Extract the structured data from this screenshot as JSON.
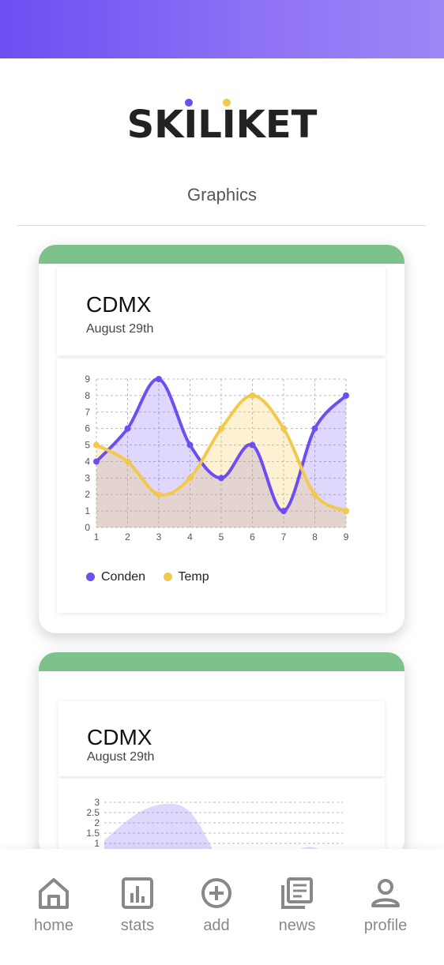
{
  "app": {
    "logo_text": "SKILIKET",
    "section_title": "Graphics"
  },
  "colors": {
    "header_gradient_start": "#6d4ef2",
    "header_gradient_end": "#9d86f6",
    "card_band": "#7cc28a",
    "series_conden": "#6d4ef2",
    "series_temp": "#f2c94c"
  },
  "cards": [
    {
      "city": "CDMX",
      "date": "August 29th",
      "chart_data": {
        "type": "line",
        "x": [
          1,
          2,
          3,
          4,
          5,
          6,
          7,
          8,
          9
        ],
        "series": [
          {
            "name": "Conden",
            "values": [
              4,
              6,
              9,
              5,
              3,
              5,
              1,
              6,
              8
            ]
          },
          {
            "name": "Temp",
            "values": [
              5,
              4,
              2,
              3,
              6,
              8,
              6,
              2,
              1
            ]
          }
        ],
        "xlim": [
          1,
          9
        ],
        "ylim": [
          0,
          9
        ],
        "y_ticks": [
          0,
          1,
          2,
          3,
          4,
          5,
          6,
          7,
          8,
          9
        ],
        "x_ticks": [
          1,
          2,
          3,
          4,
          5,
          6,
          7,
          8,
          9
        ],
        "grid": true,
        "legend": "bottom-left"
      },
      "legend": [
        "Conden",
        "Temp"
      ]
    },
    {
      "city": "CDMX",
      "date": "August 29th",
      "chart_data": {
        "type": "area",
        "y_ticks": [
          1,
          1.5,
          2,
          2.5,
          3
        ],
        "y_tick_labels": [
          "1",
          "1.5",
          "2",
          "2.5",
          "3"
        ],
        "grid": true
      }
    }
  ],
  "nav": {
    "items": [
      {
        "label": "home",
        "icon": "home-icon"
      },
      {
        "label": "stats",
        "icon": "stats-icon"
      },
      {
        "label": "add",
        "icon": "add-icon"
      },
      {
        "label": "news",
        "icon": "news-icon"
      },
      {
        "label": "profile",
        "icon": "profile-icon"
      }
    ]
  }
}
